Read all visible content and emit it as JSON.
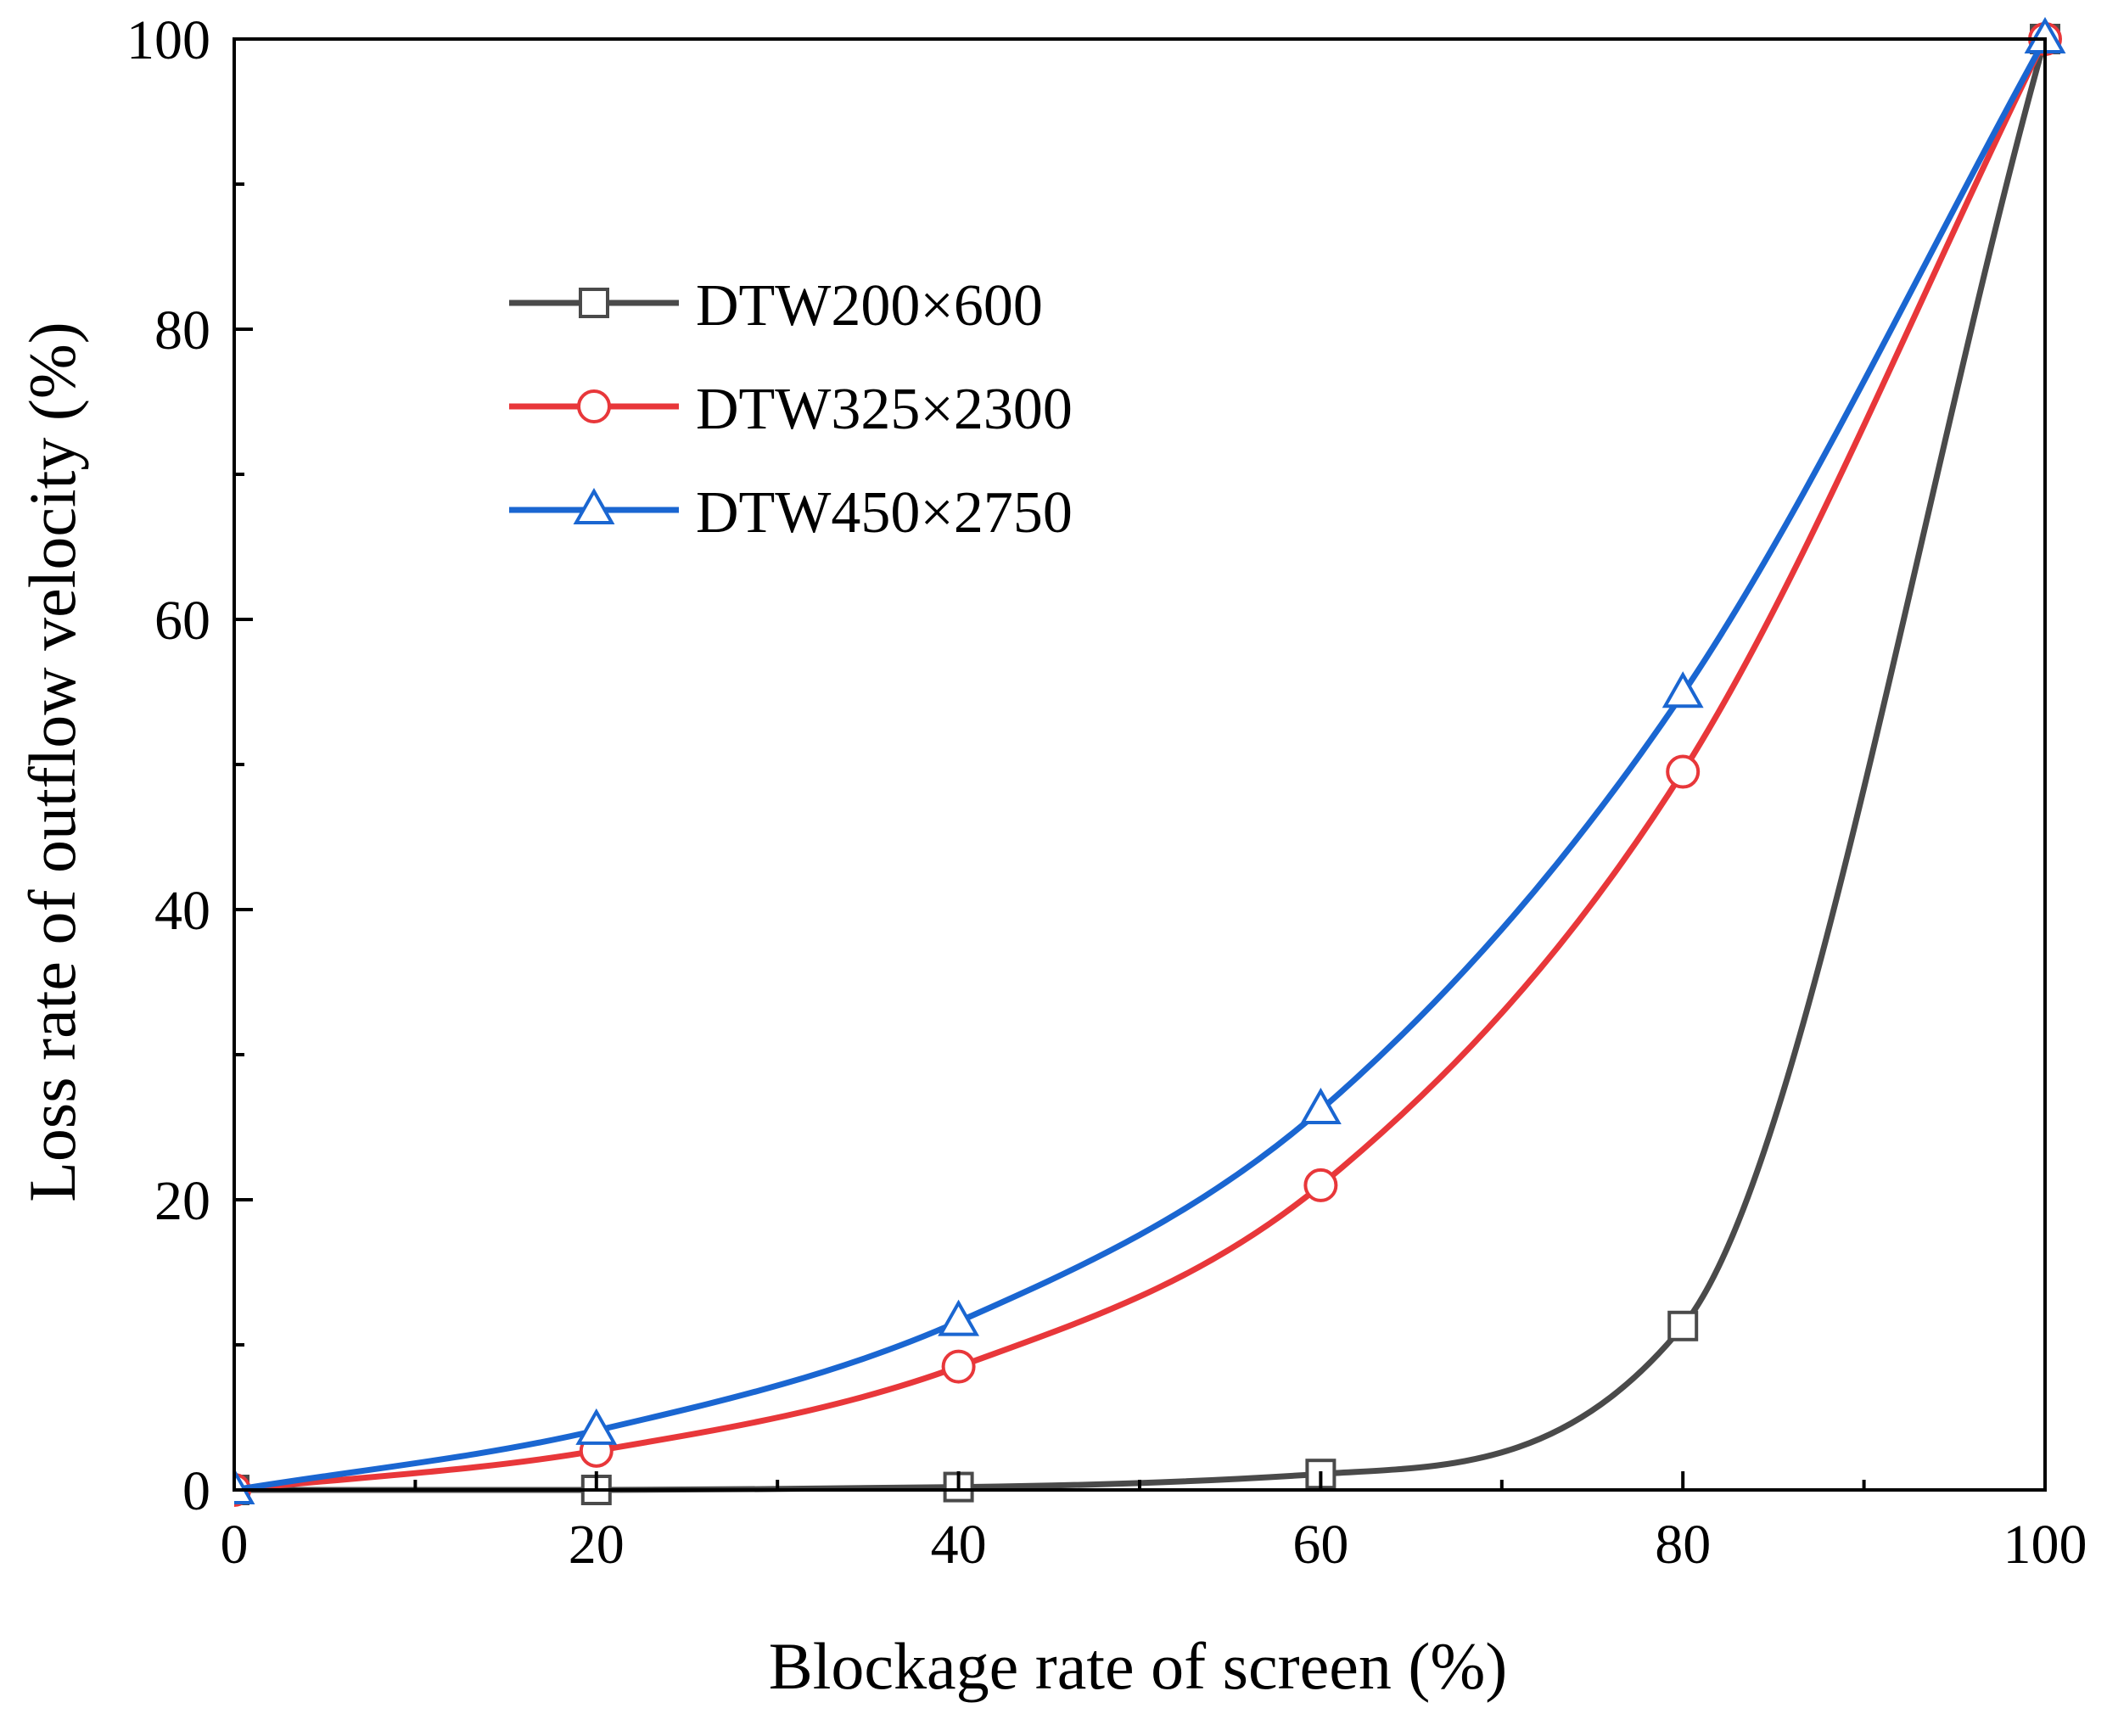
{
  "chart_data": {
    "type": "line",
    "xlabel": "Blockage rate of screen (%)",
    "ylabel": "Loss rate of outflow velocity (%)",
    "xlim": [
      0,
      100
    ],
    "ylim": [
      0,
      100
    ],
    "x_ticks": [
      "0",
      "20",
      "40",
      "60",
      "80",
      "100"
    ],
    "y_ticks": [
      "0",
      "20",
      "40",
      "60",
      "80",
      "100"
    ],
    "minor_ticks": true,
    "grid": false,
    "legend_position": "upper-left",
    "x": [
      0,
      20,
      40,
      60,
      80,
      100
    ],
    "series": [
      {
        "name": "DTW200×600",
        "values": [
          0,
          0,
          0.2,
          1.1,
          11.3,
          100
        ],
        "color": "#4a4a4a",
        "marker": "square"
      },
      {
        "name": "DTW325×2300",
        "values": [
          0,
          2.7,
          8.5,
          21.0,
          49.5,
          100
        ],
        "color": "#e8373a",
        "marker": "circle"
      },
      {
        "name": "DTW450×2750",
        "values": [
          0,
          4.1,
          11.6,
          26.2,
          54.9,
          100
        ],
        "color": "#1a66d1",
        "marker": "triangle"
      }
    ]
  }
}
